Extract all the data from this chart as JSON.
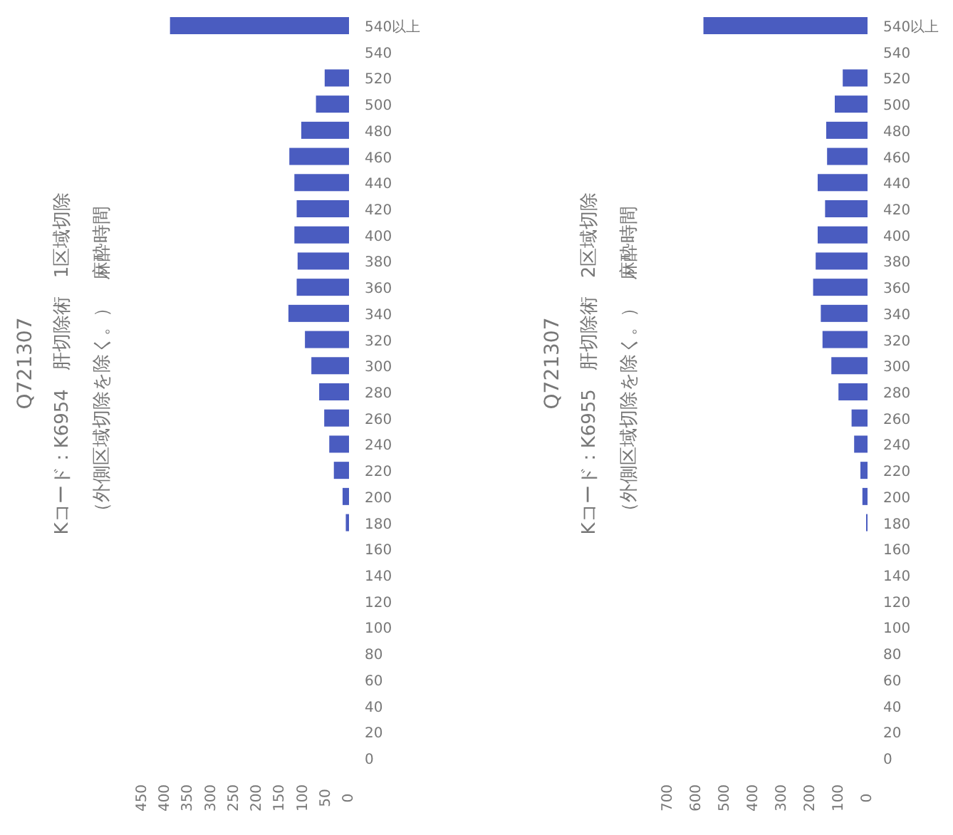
{
  "chart_data": [
    {
      "type": "bar",
      "orientation": "horizontal",
      "title": "Q721307",
      "subtitle": "Kコード：K6954　肝切除術　1区域切除",
      "annotations": [
        "（外側区域切除を除く。）　麻酔時間"
      ],
      "categories": [
        "540以上",
        "540",
        "520",
        "500",
        "480",
        "460",
        "440",
        "420",
        "400",
        "380",
        "360",
        "340",
        "320",
        "300",
        "280",
        "260",
        "240",
        "220",
        "200",
        "180",
        "160",
        "140",
        "120",
        "100",
        "80",
        "60",
        "40",
        "20",
        "0"
      ],
      "values": [
        390,
        0,
        53,
        72,
        104,
        130,
        119,
        114,
        119,
        112,
        114,
        132,
        96,
        82,
        65,
        54,
        43,
        33,
        14,
        7,
        0,
        0,
        0,
        0,
        0,
        0,
        0,
        0,
        0
      ],
      "color": "#4a5cc0",
      "xlim": [
        450,
        0
      ],
      "xticks": [
        450,
        400,
        350,
        300,
        250,
        200,
        150,
        100,
        50,
        0
      ]
    },
    {
      "type": "bar",
      "orientation": "horizontal",
      "title": "Q721307",
      "subtitle": "Kコード：K6955　肝切除術　2区域切除",
      "annotations": [
        "（外側区域切除を除く。）　麻酔時間"
      ],
      "categories": [
        "540以上",
        "540",
        "520",
        "500",
        "480",
        "460",
        "440",
        "420",
        "400",
        "380",
        "360",
        "340",
        "320",
        "300",
        "280",
        "260",
        "240",
        "220",
        "200",
        "180",
        "160",
        "140",
        "120",
        "100",
        "80",
        "60",
        "40",
        "20",
        "0"
      ],
      "values": [
        576,
        0,
        87,
        115,
        145,
        142,
        175,
        149,
        175,
        182,
        191,
        164,
        158,
        127,
        102,
        56,
        47,
        25,
        18,
        5,
        0,
        0,
        0,
        0,
        0,
        0,
        0,
        0,
        0
      ],
      "color": "#4a5cc0",
      "xlim": [
        700,
        0
      ],
      "xticks": [
        700,
        600,
        500,
        400,
        300,
        200,
        100,
        0
      ]
    }
  ]
}
